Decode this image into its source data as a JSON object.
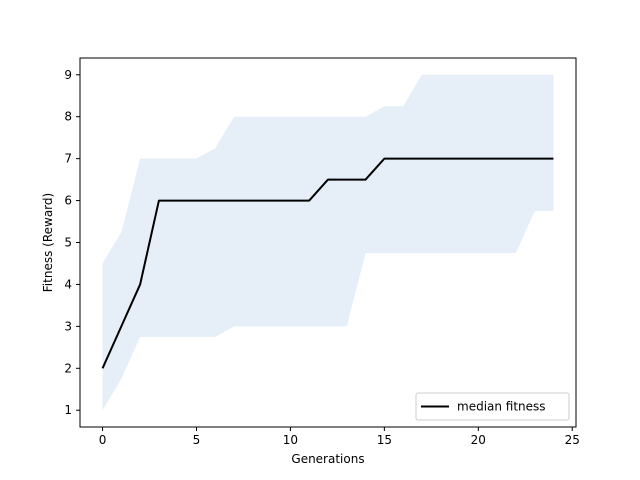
{
  "chart_data": {
    "type": "line",
    "title": "",
    "xlabel": "Generations",
    "ylabel": "Fitness (Reward)",
    "xlim": [
      -1.2,
      25.2
    ],
    "ylim": [
      0.6,
      9.4
    ],
    "xticks": [
      0,
      5,
      10,
      15,
      20,
      25
    ],
    "yticks": [
      1,
      2,
      3,
      4,
      5,
      6,
      7,
      8,
      9
    ],
    "grid": false,
    "legend": {
      "position": "lower-right",
      "entries": [
        "median fitness"
      ]
    },
    "x": [
      0,
      1,
      2,
      3,
      4,
      5,
      6,
      7,
      8,
      9,
      10,
      11,
      12,
      13,
      14,
      15,
      16,
      17,
      18,
      19,
      20,
      21,
      22,
      23,
      24
    ],
    "series": [
      {
        "name": "median fitness",
        "color": "#000000",
        "values": [
          2,
          3,
          4,
          6,
          6,
          6,
          6,
          6,
          6,
          6,
          6,
          6,
          6.5,
          6.5,
          6.5,
          7,
          7,
          7,
          7,
          7,
          7,
          7,
          7,
          7,
          7
        ]
      }
    ],
    "band": {
      "color": "#e6eff8",
      "upper": [
        4.5,
        5.25,
        7,
        7,
        7,
        7,
        7.25,
        8,
        8,
        8,
        8,
        8,
        8,
        8,
        8,
        8.25,
        8.25,
        9,
        9,
        9,
        9,
        9,
        9,
        9,
        9
      ],
      "lower": [
        1,
        1.75,
        2.75,
        2.75,
        2.75,
        2.75,
        2.75,
        3,
        3,
        3,
        3,
        3,
        3,
        3,
        4.75,
        4.75,
        4.75,
        4.75,
        4.75,
        4.75,
        4.75,
        4.75,
        4.75,
        5.75,
        5.75
      ]
    }
  }
}
